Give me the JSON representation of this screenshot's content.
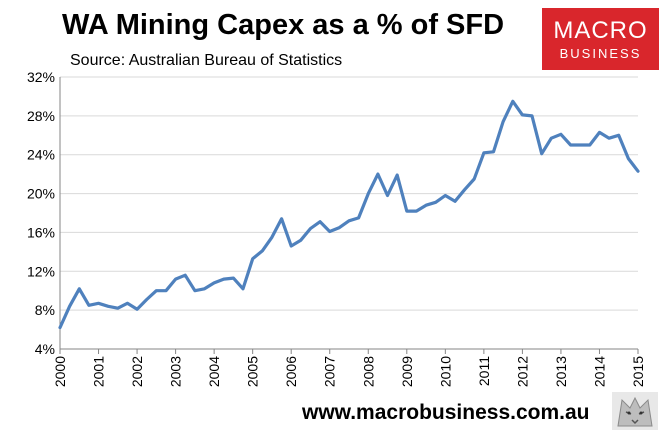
{
  "header": {
    "title": "WA Mining Capex as a % of SFD",
    "subtitle": "Source: Australian Bureau of Statistics"
  },
  "logo": {
    "line1": "MACRO",
    "line2": "BUSINESS"
  },
  "footer": {
    "url": "www.macrobusiness.com.au"
  },
  "colors": {
    "line": "#4f81bd",
    "brand": "#d9262c"
  },
  "chart_data": {
    "type": "line",
    "title": "WA Mining Capex as a % of SFD",
    "subtitle": "Source: Australian Bureau of Statistics",
    "xlabel": "",
    "ylabel": "",
    "ylim": [
      4,
      32
    ],
    "xlim": [
      2000,
      2015
    ],
    "y_ticks": [
      "4%",
      "8%",
      "12%",
      "16%",
      "20%",
      "24%",
      "28%",
      "32%"
    ],
    "y_tick_values": [
      4,
      8,
      12,
      16,
      20,
      24,
      28,
      32
    ],
    "x_ticks": [
      "2000",
      "2001",
      "2002",
      "2003",
      "2004",
      "2005",
      "2006",
      "2007",
      "2008",
      "2009",
      "2010",
      "2011",
      "2012",
      "2013",
      "2014",
      "2015"
    ],
    "x_tick_values": [
      2000,
      2001,
      2002,
      2003,
      2004,
      2005,
      2006,
      2007,
      2008,
      2009,
      2010,
      2011,
      2012,
      2013,
      2014,
      2015
    ],
    "grid": "horizontal",
    "series": [
      {
        "x": [
          2000.0,
          2000.25,
          2000.5,
          2000.75,
          2001.0,
          2001.25,
          2001.5,
          2001.75,
          2002.0,
          2002.25,
          2002.5,
          2002.75,
          2003.0,
          2003.25,
          2003.5,
          2003.75,
          2004.0,
          2004.25,
          2004.5,
          2004.75,
          2005.0,
          2005.25,
          2005.5,
          2005.75,
          2006.0,
          2006.25,
          2006.5,
          2006.75,
          2007.0,
          2007.25,
          2007.5,
          2007.75,
          2008.0,
          2008.25,
          2008.5,
          2008.75,
          2009.0,
          2009.25,
          2009.5,
          2009.75,
          2010.0,
          2010.25,
          2010.5,
          2010.75,
          2011.0,
          2011.25,
          2011.5,
          2011.75,
          2012.0,
          2012.25,
          2012.5,
          2012.75,
          2013.0,
          2013.25,
          2013.5,
          2013.75,
          2014.0,
          2014.25,
          2014.5,
          2014.75,
          2015.0
        ],
        "values": [
          6.2,
          8.4,
          10.2,
          8.5,
          8.7,
          8.4,
          8.2,
          8.7,
          8.1,
          9.1,
          10.0,
          10.0,
          11.2,
          11.6,
          10.0,
          10.2,
          10.8,
          11.2,
          11.3,
          10.2,
          13.3,
          14.1,
          15.5,
          17.4,
          14.6,
          15.2,
          16.4,
          17.1,
          16.1,
          16.5,
          17.2,
          17.5,
          20.0,
          22.0,
          19.8,
          21.9,
          18.2,
          18.2,
          18.8,
          19.1,
          19.8,
          19.2,
          20.4,
          21.5,
          24.2,
          24.3,
          27.4,
          29.5,
          28.1,
          28.0,
          24.1,
          25.7,
          26.1,
          25.0,
          25.0,
          25.0,
          26.3,
          25.7,
          26.0,
          23.6,
          22.3
        ]
      }
    ]
  }
}
